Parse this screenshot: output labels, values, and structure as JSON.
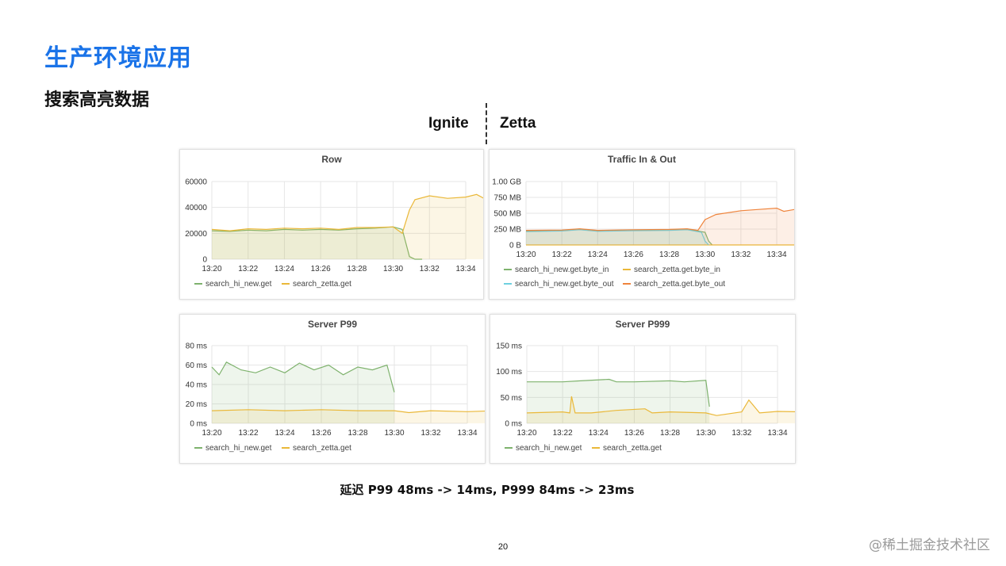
{
  "slide": {
    "title": "生产环境应用",
    "subtitle": "搜索高亮数据",
    "label_left": "Ignite",
    "label_right": "Zetta",
    "caption": "延迟 P99 48ms -> 14ms, P999 84ms -> 23ms",
    "page_number": "20",
    "watermark": "@稀土掘金技术社区"
  },
  "colors": {
    "title": "#1a73e8",
    "green": "#7eb26d",
    "yellow": "#eab839",
    "teal": "#6ed0e0",
    "orange": "#ef843c"
  },
  "chart_data": [
    {
      "type": "area",
      "title": "Row",
      "x": [
        "13:20",
        "13:22",
        "13:24",
        "13:26",
        "13:28",
        "13:30",
        "13:32",
        "13:34"
      ],
      "ylim": [
        0,
        60000
      ],
      "yticks": [
        "0",
        "20000",
        "40000",
        "60000"
      ],
      "series": [
        {
          "name": "search_hi_new.get",
          "color": "#7eb26d",
          "points": [
            [
              0,
              22000
            ],
            [
              0.5,
              21500
            ],
            [
              1,
              22500
            ],
            [
              1.5,
              22000
            ],
            [
              2,
              23000
            ],
            [
              2.5,
              22500
            ],
            [
              3,
              23000
            ],
            [
              3.5,
              22500
            ],
            [
              4,
              23500
            ],
            [
              4.5,
              24000
            ],
            [
              5,
              25000
            ],
            [
              5.25,
              23000
            ],
            [
              5.45,
              2000
            ],
            [
              5.6,
              0
            ],
            [
              5.8,
              0
            ]
          ]
        },
        {
          "name": "search_zetta.get",
          "color": "#eab839",
          "points": [
            [
              0,
              23000
            ],
            [
              0.5,
              22000
            ],
            [
              1,
              23500
            ],
            [
              1.5,
              23000
            ],
            [
              2,
              24000
            ],
            [
              2.5,
              23500
            ],
            [
              3,
              24000
            ],
            [
              3.5,
              23000
            ],
            [
              4,
              24500
            ],
            [
              4.5,
              24500
            ],
            [
              5,
              25000
            ],
            [
              5.25,
              20000
            ],
            [
              5.45,
              38000
            ],
            [
              5.6,
              46000
            ],
            [
              6,
              49000
            ],
            [
              6.5,
              47000
            ],
            [
              7,
              48000
            ],
            [
              7.3,
              50000
            ],
            [
              7.5,
              47000
            ],
            [
              7.8,
              47000
            ]
          ]
        }
      ]
    },
    {
      "type": "area",
      "title": "Traffic In & Out",
      "x": [
        "13:20",
        "13:22",
        "13:24",
        "13:26",
        "13:28",
        "13:30",
        "13:32",
        "13:34"
      ],
      "ylim": [
        0,
        1000
      ],
      "yticks": [
        "0 B",
        "250 MB",
        "500 MB",
        "750 MB",
        "1.00 GB"
      ],
      "series": [
        {
          "name": "search_hi_new.get.byte_in",
          "color": "#7eb26d",
          "points": [
            [
              0,
              220
            ],
            [
              1,
              230
            ],
            [
              1.5,
              250
            ],
            [
              2,
              225
            ],
            [
              3,
              235
            ],
            [
              4,
              240
            ],
            [
              4.5,
              250
            ],
            [
              5,
              200
            ],
            [
              5.1,
              60
            ],
            [
              5.2,
              0
            ]
          ]
        },
        {
          "name": "search_zetta.get.byte_in",
          "color": "#eab839",
          "points": [
            [
              0,
              0
            ],
            [
              7.8,
              0
            ]
          ]
        },
        {
          "name": "search_hi_new.get.byte_out",
          "color": "#6ed0e0",
          "points": [
            [
              0,
              210
            ],
            [
              1,
              220
            ],
            [
              1.5,
              240
            ],
            [
              2,
              215
            ],
            [
              3,
              225
            ],
            [
              4,
              230
            ],
            [
              4.5,
              240
            ],
            [
              4.9,
              200
            ],
            [
              5,
              60
            ],
            [
              5.1,
              0
            ]
          ]
        },
        {
          "name": "search_zetta.get.byte_out",
          "color": "#ef843c",
          "points": [
            [
              0,
              230
            ],
            [
              1,
              235
            ],
            [
              1.5,
              255
            ],
            [
              2,
              230
            ],
            [
              3,
              240
            ],
            [
              4,
              245
            ],
            [
              4.5,
              255
            ],
            [
              4.8,
              230
            ],
            [
              5,
              400
            ],
            [
              5.3,
              480
            ],
            [
              6,
              540
            ],
            [
              6.5,
              560
            ],
            [
              7,
              580
            ],
            [
              7.2,
              530
            ],
            [
              7.5,
              560
            ],
            [
              7.8,
              550
            ]
          ]
        }
      ]
    },
    {
      "type": "area",
      "title": "Server P99",
      "x": [
        "13:20",
        "13:22",
        "13:24",
        "13:26",
        "13:28",
        "13:30",
        "13:32",
        "13:34"
      ],
      "ylim": [
        0,
        80
      ],
      "yticks": [
        "0 ms",
        "20 ms",
        "40 ms",
        "60 ms",
        "80 ms"
      ],
      "series": [
        {
          "name": "search_hi_new.get",
          "color": "#7eb26d",
          "points": [
            [
              0,
              58
            ],
            [
              0.2,
              50
            ],
            [
              0.4,
              63
            ],
            [
              0.8,
              55
            ],
            [
              1.2,
              52
            ],
            [
              1.6,
              58
            ],
            [
              2,
              52
            ],
            [
              2.4,
              62
            ],
            [
              2.8,
              55
            ],
            [
              3.2,
              60
            ],
            [
              3.6,
              50
            ],
            [
              4,
              58
            ],
            [
              4.4,
              55
            ],
            [
              4.8,
              60
            ],
            [
              5,
              32
            ]
          ]
        },
        {
          "name": "search_zetta.get",
          "color": "#eab839",
          "points": [
            [
              0,
              13
            ],
            [
              1,
              14
            ],
            [
              2,
              13
            ],
            [
              3,
              14
            ],
            [
              4,
              13
            ],
            [
              5,
              13
            ],
            [
              5.4,
              11
            ],
            [
              6,
              13
            ],
            [
              7,
              12
            ],
            [
              7.8,
              13
            ]
          ]
        }
      ]
    },
    {
      "type": "area",
      "title": "Server P999",
      "x": [
        "13:20",
        "13:22",
        "13:24",
        "13:26",
        "13:28",
        "13:30",
        "13:32",
        "13:34"
      ],
      "ylim": [
        0,
        150
      ],
      "yticks": [
        "0 ms",
        "50 ms",
        "100 ms",
        "150 ms"
      ],
      "series": [
        {
          "name": "search_hi_new.get",
          "color": "#7eb26d",
          "points": [
            [
              0,
              80
            ],
            [
              1,
              80
            ],
            [
              1.5,
              82
            ],
            [
              2.3,
              85
            ],
            [
              2.5,
              80
            ],
            [
              3,
              80
            ],
            [
              4,
              82
            ],
            [
              4.4,
              80
            ],
            [
              5,
              83
            ],
            [
              5.1,
              32
            ]
          ]
        },
        {
          "name": "search_zetta.get",
          "color": "#eab839",
          "points": [
            [
              0,
              20
            ],
            [
              1,
              22
            ],
            [
              1.2,
              20
            ],
            [
              1.25,
              52
            ],
            [
              1.35,
              20
            ],
            [
              1.8,
              20
            ],
            [
              2.5,
              25
            ],
            [
              3.3,
              28
            ],
            [
              3.5,
              20
            ],
            [
              4,
              22
            ],
            [
              5,
              20
            ],
            [
              5.3,
              15
            ],
            [
              6,
              22
            ],
            [
              6.2,
              45
            ],
            [
              6.5,
              20
            ],
            [
              7,
              23
            ],
            [
              7.8,
              22
            ]
          ]
        }
      ]
    }
  ]
}
